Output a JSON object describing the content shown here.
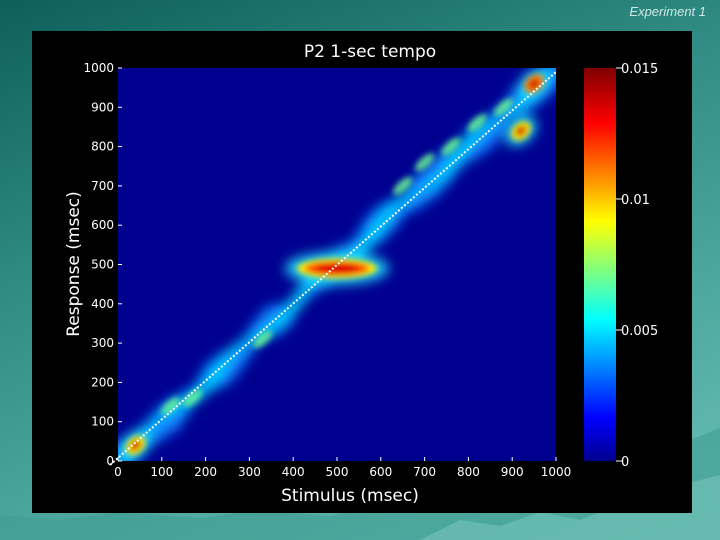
{
  "slide": {
    "tag": "Experiment 1"
  },
  "chart_data": {
    "type": "heatmap",
    "title": "P2 1-sec tempo",
    "xlabel": "Stimulus (msec)",
    "ylabel": "Response (msec)",
    "xlim": [
      0,
      1000
    ],
    "ylim": [
      0,
      1000
    ],
    "x_ticks": [
      "0",
      "100",
      "200",
      "300",
      "400",
      "500",
      "600",
      "700",
      "800",
      "900",
      "1000"
    ],
    "y_ticks": [
      "0",
      "100",
      "200",
      "300",
      "400",
      "500",
      "600",
      "700",
      "800",
      "900",
      "1000"
    ],
    "colorbar": {
      "range": [
        0,
        0.015
      ],
      "tick_values": [
        0,
        0.005,
        0.01,
        0.015
      ],
      "tick_labels": [
        "0",
        "0.005",
        "0.01",
        "0.015"
      ],
      "colormap": "jet"
    },
    "reference_line": {
      "from": [
        0,
        0
      ],
      "to": [
        1000,
        1000
      ],
      "style": "dotted",
      "color": "#ffffff"
    },
    "density_peaks": [
      {
        "x": 500,
        "y": 490,
        "level": 0.0145
      },
      {
        "x": 40,
        "y": 40,
        "level": 0.011
      },
      {
        "x": 950,
        "y": 960,
        "level": 0.013
      },
      {
        "x": 920,
        "y": 840,
        "level": 0.009
      }
    ],
    "colors": {
      "background": "#00008f",
      "figure_bg": "#000000"
    }
  }
}
